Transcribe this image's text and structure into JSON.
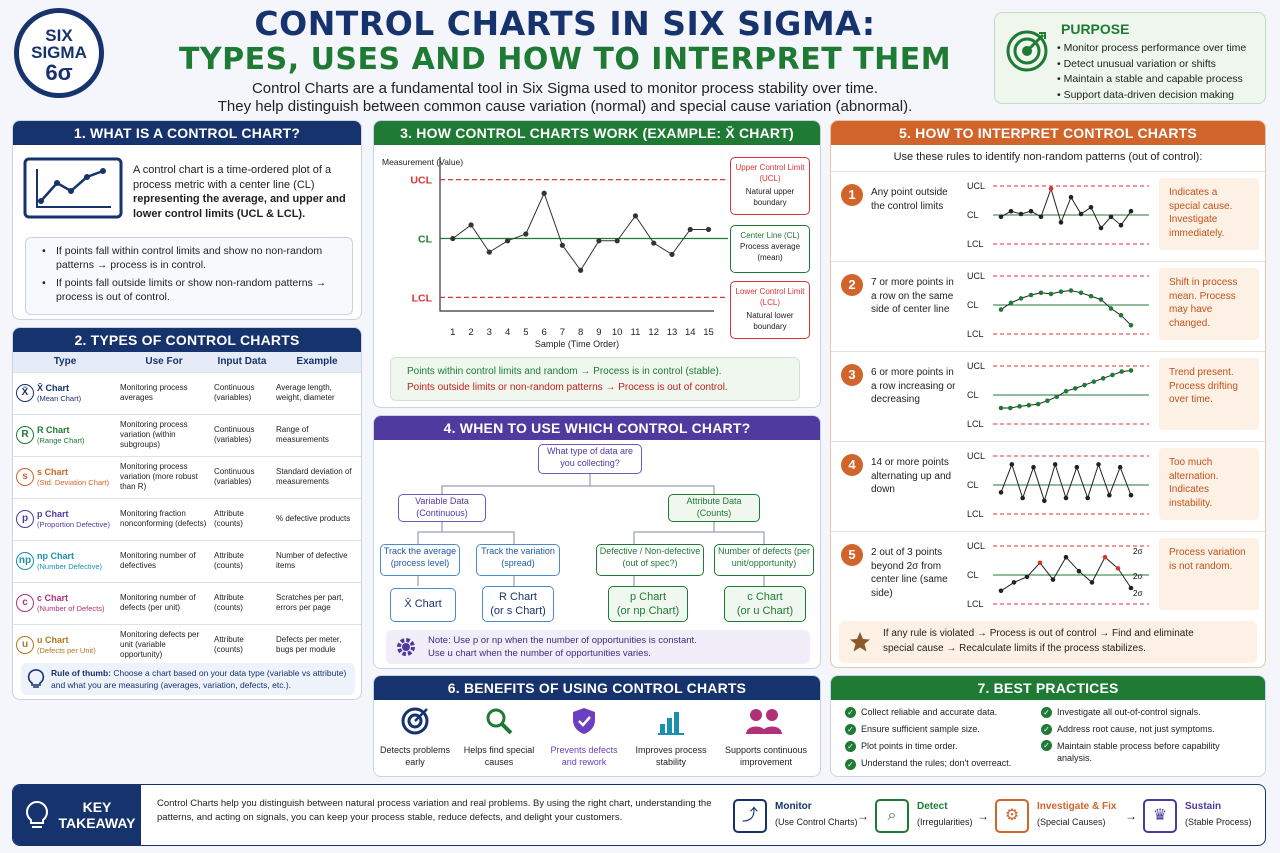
{
  "logo": {
    "line1": "SIX",
    "line2": "SIGMA",
    "line3": "6σ"
  },
  "header": {
    "title_line1": "CONTROL CHARTS IN SIX SIGMA:",
    "title_line2": "TYPES, USES AND HOW TO INTERPRET THEM",
    "subtitle_line1": "Control Charts are a fundamental tool in Six Sigma used to monitor process stability over time.",
    "subtitle_line2": "They help distinguish between common cause variation (normal) and special cause variation (abnormal)."
  },
  "purpose": {
    "title": "PURPOSE",
    "items": [
      "Monitor process performance over time",
      "Detect unusual variation or shifts",
      "Maintain a stable and capable process",
      "Support data-driven decision making"
    ]
  },
  "section1": {
    "title": "1. WHAT IS A CONTROL CHART?",
    "desc_a": "A control chart is a time-ordered plot of a process metric with a center line (CL)",
    "desc_b": "representing the average, and upper and lower control limits (UCL & LCL).",
    "bullet1": "If points fall within control limits and show no non-random patterns → process is in control.",
    "bullet2": "If points fall outside limits or show non-random patterns → process is out of control."
  },
  "section2": {
    "title": "2. TYPES OF CONTROL CHARTS",
    "headers": [
      "Type",
      "Use For",
      "Input Data",
      "Example"
    ],
    "rows": [
      {
        "sym": "X̄",
        "name": "X̄ Chart",
        "sub": "(Mean Chart)",
        "use": "Monitoring process averages",
        "input": "Continuous (variables)",
        "example": "Average length, weight, diameter",
        "color": "#17336e"
      },
      {
        "sym": "R",
        "name": "R Chart",
        "sub": "(Range Chart)",
        "use": "Monitoring process variation (within subgroups)",
        "input": "Continuous (variables)",
        "example": "Range of measurements",
        "color": "#1f7a34"
      },
      {
        "sym": "s",
        "name": "s Chart",
        "sub": "(Std. Deviation Chart)",
        "use": "Monitoring process variation (more robust than R)",
        "input": "Continuous (variables)",
        "example": "Standard deviation of measurements",
        "color": "#d0642a"
      },
      {
        "sym": "p",
        "name": "p Chart",
        "sub": "(Proportion Defective)",
        "use": "Monitoring fraction nonconforming (defects)",
        "input": "Attribute (counts)",
        "example": "% defective products",
        "color": "#4f3aa0"
      },
      {
        "sym": "np",
        "name": "np Chart",
        "sub": "(Number Defective)",
        "use": "Monitoring number of defectives",
        "input": "Attribute (counts)",
        "example": "Number of defective items",
        "color": "#1a8fb0"
      },
      {
        "sym": "c",
        "name": "c Chart",
        "sub": "(Number of Defects)",
        "use": "Monitoring number of defects (per unit)",
        "input": "Attribute (counts)",
        "example": "Scratches per part, errors per page",
        "color": "#b0307a"
      },
      {
        "sym": "u",
        "name": "u Chart",
        "sub": "(Defects per Unit)",
        "use": "Monitoring defects per unit (variable opportunity)",
        "input": "Attribute (counts)",
        "example": "Defects per meter, bugs per module",
        "color": "#b07a1a"
      }
    ],
    "rule_bold": "Rule of thumb:",
    "rule_text": "Choose a chart based on your data type (variable vs attribute) and what you are measuring (averages, variation, defects, etc.)."
  },
  "section3": {
    "title": "3. HOW CONTROL CHARTS WORK (EXAMPLE: X̄ CHART)",
    "ucl_box_title": "Upper Control Limit (UCL)",
    "ucl_box_sub": "Natural upper boundary",
    "cl_box_title": "Center Line (CL)",
    "cl_box_sub": "Process average (mean)",
    "lcl_box_title": "Lower Control Limit (LCL)",
    "lcl_box_sub": "Natural lower boundary",
    "note_green": "Points within control limits and random → Process is in control (stable).",
    "note_red": "Points outside limits or non-random patterns → Process is out of control."
  },
  "chart_data": {
    "type": "line",
    "x": [
      1,
      2,
      3,
      4,
      5,
      6,
      7,
      8,
      9,
      10,
      11,
      12,
      13,
      14,
      15
    ],
    "y": [
      5.0,
      5.6,
      4.4,
      4.9,
      5.2,
      7.0,
      4.7,
      3.6,
      4.9,
      4.9,
      6.0,
      4.8,
      4.3,
      5.4,
      5.4
    ],
    "ucl": 7.6,
    "cl": 5.0,
    "lcl": 2.4,
    "ylim": [
      1.8,
      8.6
    ],
    "ylabel": "Measurement (Value)",
    "xlabel": "Sample (Time Order)",
    "line_labels": {
      "ucl": "UCL",
      "cl": "CL",
      "lcl": "LCL"
    },
    "grid": false
  },
  "section4": {
    "title": "4. WHEN TO USE WHICH CONTROL CHART?",
    "q": "What type of data are you collecting?",
    "variable": "Variable Data (Continuous)",
    "attribute": "Attribute Data (Counts)",
    "v1": "Track the average (process level)",
    "v2": "Track the variation (spread)",
    "a1": "Defective / Non-defective (out of spec?)",
    "a2": "Number of defects (per unit/opportunity)",
    "r1": "X̄ Chart",
    "r2_line1": "R Chart",
    "r2_line2": "(or s Chart)",
    "r3_line1": "p Chart",
    "r3_line2": "(or np Chart)",
    "r4_line1": "c Chart",
    "r4_line2": "(or u Chart)",
    "note1": "Note: Use p or np when the number of opportunities is constant.",
    "note2": "Use u chart when the number of opportunities varies."
  },
  "section5": {
    "title": "5. HOW TO INTERPRET CONTROL CHARTS",
    "intro": "Use these rules to identify non-random patterns (out of control):",
    "rules": [
      {
        "n": "1",
        "text": "Any point outside the control limits",
        "result": "Indicates a special cause. Investigate immediately."
      },
      {
        "n": "2",
        "text": "7 or more points in a row on the same side of center line",
        "result": "Shift in process mean. Process may have changed."
      },
      {
        "n": "3",
        "text": "6 or more points in a row increasing or decreasing",
        "result": "Trend present. Process drifting over time."
      },
      {
        "n": "4",
        "text": "14 or more points alternating up and down",
        "result": "Too much alternation. Indicates instability."
      },
      {
        "n": "5",
        "text": "2 out of 3 points beyond 2σ from center line (same side)",
        "result": "Process variation is not random."
      }
    ],
    "mini_labels": {
      "ucl": "UCL",
      "cl": "CL",
      "lcl": "LCL",
      "two_sigma": "2σ"
    },
    "footer_line1": "If any rule is violated → Process is out of control → Find and eliminate",
    "footer_line2": "special cause → Recalculate limits if the process stabilizes."
  },
  "section6": {
    "title": "6. BENEFITS OF USING CONTROL CHARTS",
    "items": [
      "Detects problems early",
      "Helps find special causes",
      "Prevents defects and rework",
      "Improves process stability",
      "Supports continuous improvement"
    ]
  },
  "section7": {
    "title": "7. BEST PRACTICES",
    "left": [
      "Collect reliable and accurate data.",
      "Ensure sufficient sample size.",
      "Plot points in time order.",
      "Understand the rules; don't overreact."
    ],
    "right": [
      "Investigate all out-of-control signals.",
      "Address root cause, not just symptoms.",
      "Maintain stable process before capability analysis."
    ]
  },
  "takeaway": {
    "label_line1": "KEY",
    "label_line2": "TAKEAWAY",
    "text_line1": "Control Charts help you distinguish between natural process variation and real problems. By using the right chart, understanding the",
    "text_line2": "patterns, and acting on signals, you can keep your process stable, reduce defects, and delight your customers.",
    "steps": [
      {
        "title": "Monitor",
        "sub": "(Use Control Charts)",
        "color": "#17336e"
      },
      {
        "title": "Detect",
        "sub": "(Irregularities)",
        "color": "#1f7a34"
      },
      {
        "title": "Investigate & Fix",
        "sub": "(Special Causes)",
        "color": "#d0642a"
      },
      {
        "title": "Sustain",
        "sub": "(Stable Process)",
        "color": "#4f3aa0"
      }
    ]
  }
}
